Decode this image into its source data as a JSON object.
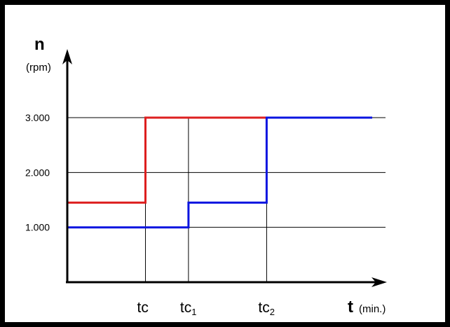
{
  "chart_data": {
    "type": "line",
    "y_axis": {
      "symbol": "n",
      "unit": "(rpm)",
      "ticks": [
        {
          "value": 1000,
          "label": "1.000"
        },
        {
          "value": 2000,
          "label": "2.000"
        },
        {
          "value": 3000,
          "label": "3.000"
        }
      ],
      "ylim": [
        0,
        3600
      ]
    },
    "x_axis": {
      "symbol": "t",
      "unit": "(min.)",
      "markers": [
        {
          "id": "tc",
          "label": "tc",
          "sub": "",
          "x": 1.0
        },
        {
          "id": "tc1",
          "label": "tc",
          "sub": "1",
          "x": 1.55
        },
        {
          "id": "tc2",
          "label": "tc",
          "sub": "2",
          "x": 2.55
        }
      ],
      "xlim": [
        0,
        3.9
      ]
    },
    "grid": "horizontal",
    "series": [
      {
        "color": "#dd1f1f",
        "points": [
          [
            0,
            1450
          ],
          [
            1.0,
            1450
          ],
          [
            1.0,
            3000
          ],
          [
            2.55,
            3000
          ]
        ]
      },
      {
        "color": "#0a14e0",
        "points": [
          [
            0,
            1000
          ],
          [
            1.55,
            1000
          ],
          [
            1.55,
            1450
          ],
          [
            2.55,
            1450
          ],
          [
            2.55,
            3000
          ],
          [
            3.9,
            3000
          ]
        ]
      }
    ]
  }
}
